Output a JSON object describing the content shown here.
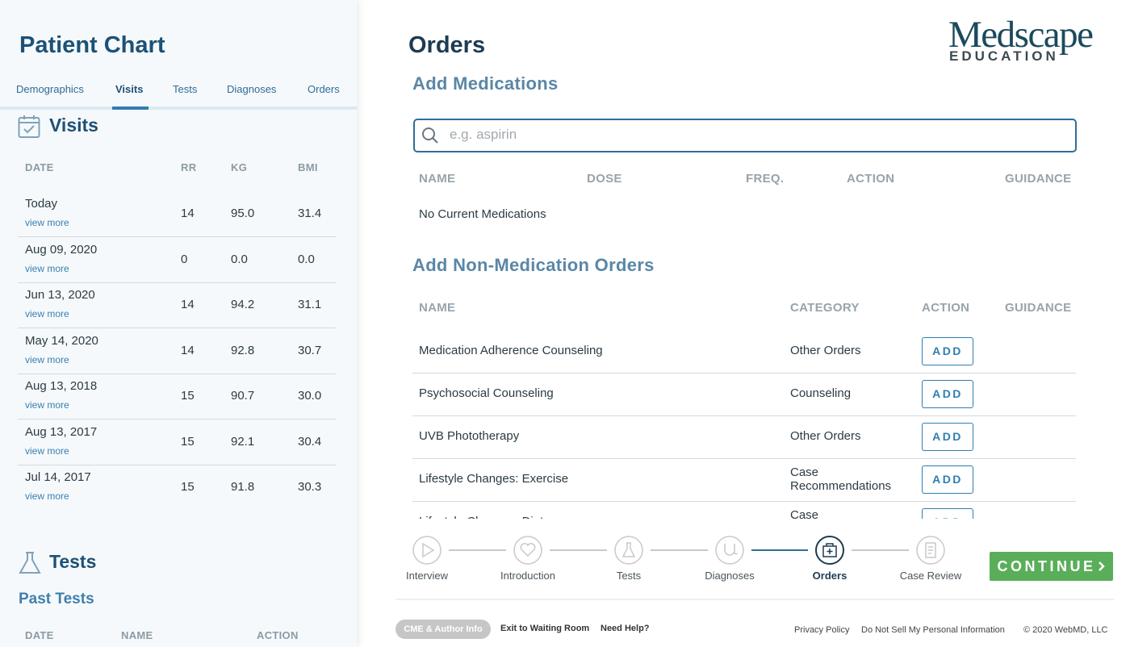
{
  "patient_chart": {
    "title": "Patient Chart",
    "tabs": [
      "Demographics",
      "Visits",
      "Tests",
      "Diagnoses",
      "Orders"
    ],
    "active_tab": 1,
    "visits": {
      "heading": "Visits",
      "columns": [
        "DATE",
        "RR",
        "KG",
        "BMI"
      ],
      "rows": [
        {
          "date": "Today",
          "link": "view more",
          "rr": "14",
          "kg": "95.0",
          "bmi": "31.4"
        },
        {
          "date": "Aug 09, 2020",
          "link": "view more",
          "rr": "0",
          "kg": "0.0",
          "bmi": "0.0"
        },
        {
          "date": "Jun 13, 2020",
          "link": "view more",
          "rr": "14",
          "kg": "94.2",
          "bmi": "31.1"
        },
        {
          "date": "May 14, 2020",
          "link": "view more",
          "rr": "14",
          "kg": "92.8",
          "bmi": "30.7"
        },
        {
          "date": "Aug 13, 2018",
          "link": "view more",
          "rr": "15",
          "kg": "90.7",
          "bmi": "30.0"
        },
        {
          "date": "Aug 13, 2017",
          "link": "view more",
          "rr": "15",
          "kg": "92.1",
          "bmi": "30.4"
        },
        {
          "date": "Jul 14, 2017",
          "link": "view more",
          "rr": "15",
          "kg": "91.8",
          "bmi": "30.3"
        }
      ]
    },
    "tests": {
      "heading": "Tests",
      "subheading": "Past Tests",
      "columns": [
        "DATE",
        "NAME",
        "ACTION"
      ]
    }
  },
  "orders": {
    "title": "Orders",
    "logo": {
      "main": "Medscape",
      "sub": "EDUCATION"
    },
    "medications": {
      "heading": "Add Medications",
      "search_placeholder": "e.g. aspirin",
      "columns": [
        "NAME",
        "DOSE",
        "FREQ.",
        "ACTION",
        "GUIDANCE"
      ],
      "empty": "No Current Medications"
    },
    "non_medication": {
      "heading": "Add Non-Medication Orders",
      "columns": [
        "NAME",
        "CATEGORY",
        "ACTION",
        "GUIDANCE"
      ],
      "rows": [
        {
          "name": "Medication Adherence Counseling",
          "category": "Other Orders",
          "action": "ADD"
        },
        {
          "name": "Psychosocial Counseling",
          "category": "Counseling",
          "action": "ADD"
        },
        {
          "name": "UVB Phototherapy",
          "category": "Other Orders",
          "action": "ADD"
        },
        {
          "name": "Lifestyle Changes: Exercise",
          "category": "Case Recommendations",
          "action": "ADD"
        },
        {
          "name": "Lifestyle Changes: Diet",
          "category": "Case Recommendations",
          "action": "ADD"
        }
      ]
    }
  },
  "steps": {
    "items": [
      "Interview",
      "Introduction",
      "Tests",
      "Diagnoses",
      "Orders",
      "Case Review"
    ],
    "active": 4,
    "continue": "CONTINUE"
  },
  "footer": {
    "cme": "CME & Author Info",
    "exit": "Exit to Waiting Room",
    "help": "Need Help?",
    "links": [
      "Privacy Policy",
      "Do Not Sell My Personal Information",
      "© 2020 WebMD, LLC"
    ]
  }
}
